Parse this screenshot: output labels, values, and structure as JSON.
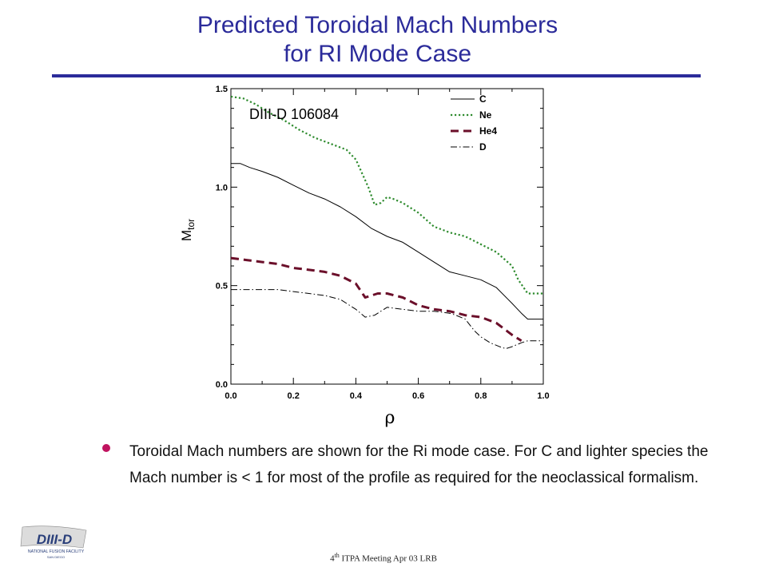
{
  "slide": {
    "title_line1": "Predicted Toroidal Mach Numbers",
    "title_line2": "for RI Mode Case",
    "bullet_text": "Toroidal Mach numbers are shown for the Ri mode case. For C and lighter species the Mach number is < 1 for most of the profile as required for the neoclassical formalism.",
    "footer_prefix": "4",
    "footer_sup": "th",
    "footer_rest": " ITPA Meeting  Apr 03  LRB",
    "logo_text": "DIII-D",
    "logo_subtext": "NATIONAL FUSION FACILITY",
    "logo_subtext2": "SAN DIEGO",
    "accent_color": "#2b2b9a",
    "bullet_color": "#c0135f"
  },
  "chart_data": {
    "type": "line",
    "annotation": "DIII-D  106084",
    "xlabel": "ρ",
    "ylabel_main": "M",
    "ylabel_sub": "tor",
    "xlim": [
      0.0,
      1.0
    ],
    "ylim": [
      0.0,
      1.5
    ],
    "xticks": [
      "0.0",
      "0.2",
      "0.4",
      "0.6",
      "0.8",
      "1.0"
    ],
    "yticks": [
      "0.0",
      "0.5",
      "1.0",
      "1.5"
    ],
    "legend_position": "top-right",
    "series": [
      {
        "name": "C",
        "style": "solid",
        "color": "#000000",
        "x": [
          0.0,
          0.03,
          0.06,
          0.1,
          0.15,
          0.2,
          0.25,
          0.3,
          0.35,
          0.4,
          0.45,
          0.5,
          0.55,
          0.6,
          0.65,
          0.7,
          0.75,
          0.8,
          0.85,
          0.9,
          0.93,
          0.95,
          1.0
        ],
        "y": [
          1.12,
          1.12,
          1.1,
          1.08,
          1.05,
          1.01,
          0.97,
          0.94,
          0.9,
          0.85,
          0.79,
          0.75,
          0.72,
          0.67,
          0.62,
          0.57,
          0.55,
          0.53,
          0.49,
          0.41,
          0.36,
          0.33,
          0.33
        ]
      },
      {
        "name": "Ne",
        "style": "dotted",
        "color": "#2e8b2e",
        "x": [
          0.0,
          0.04,
          0.08,
          0.12,
          0.17,
          0.22,
          0.27,
          0.32,
          0.37,
          0.4,
          0.44,
          0.46,
          0.48,
          0.5,
          0.52,
          0.55,
          0.6,
          0.65,
          0.7,
          0.75,
          0.8,
          0.85,
          0.9,
          0.92,
          0.95,
          1.0
        ],
        "y": [
          1.46,
          1.45,
          1.42,
          1.38,
          1.34,
          1.29,
          1.25,
          1.22,
          1.19,
          1.14,
          1.0,
          0.91,
          0.92,
          0.95,
          0.94,
          0.92,
          0.87,
          0.8,
          0.77,
          0.75,
          0.71,
          0.67,
          0.6,
          0.53,
          0.46,
          0.46
        ]
      },
      {
        "name": "He4",
        "style": "dashed",
        "color": "#6b0f2a",
        "x": [
          0.0,
          0.05,
          0.1,
          0.15,
          0.2,
          0.25,
          0.3,
          0.35,
          0.4,
          0.43,
          0.45,
          0.47,
          0.5,
          0.55,
          0.6,
          0.65,
          0.7,
          0.75,
          0.8,
          0.85,
          0.9,
          0.93
        ],
        "y": [
          0.64,
          0.63,
          0.62,
          0.61,
          0.59,
          0.58,
          0.57,
          0.55,
          0.51,
          0.44,
          0.45,
          0.46,
          0.46,
          0.44,
          0.4,
          0.38,
          0.37,
          0.35,
          0.34,
          0.31,
          0.25,
          0.22
        ]
      },
      {
        "name": "D",
        "style": "dashdot",
        "color": "#000000",
        "x": [
          0.0,
          0.05,
          0.1,
          0.15,
          0.2,
          0.25,
          0.3,
          0.35,
          0.4,
          0.43,
          0.46,
          0.48,
          0.5,
          0.55,
          0.6,
          0.65,
          0.7,
          0.72,
          0.75,
          0.78,
          0.8,
          0.83,
          0.86,
          0.88,
          0.9,
          0.93,
          0.95,
          1.0
        ],
        "y": [
          0.48,
          0.48,
          0.48,
          0.48,
          0.47,
          0.46,
          0.45,
          0.43,
          0.38,
          0.34,
          0.35,
          0.37,
          0.39,
          0.38,
          0.37,
          0.37,
          0.36,
          0.35,
          0.33,
          0.27,
          0.24,
          0.21,
          0.19,
          0.18,
          0.19,
          0.21,
          0.22,
          0.22
        ]
      }
    ]
  }
}
